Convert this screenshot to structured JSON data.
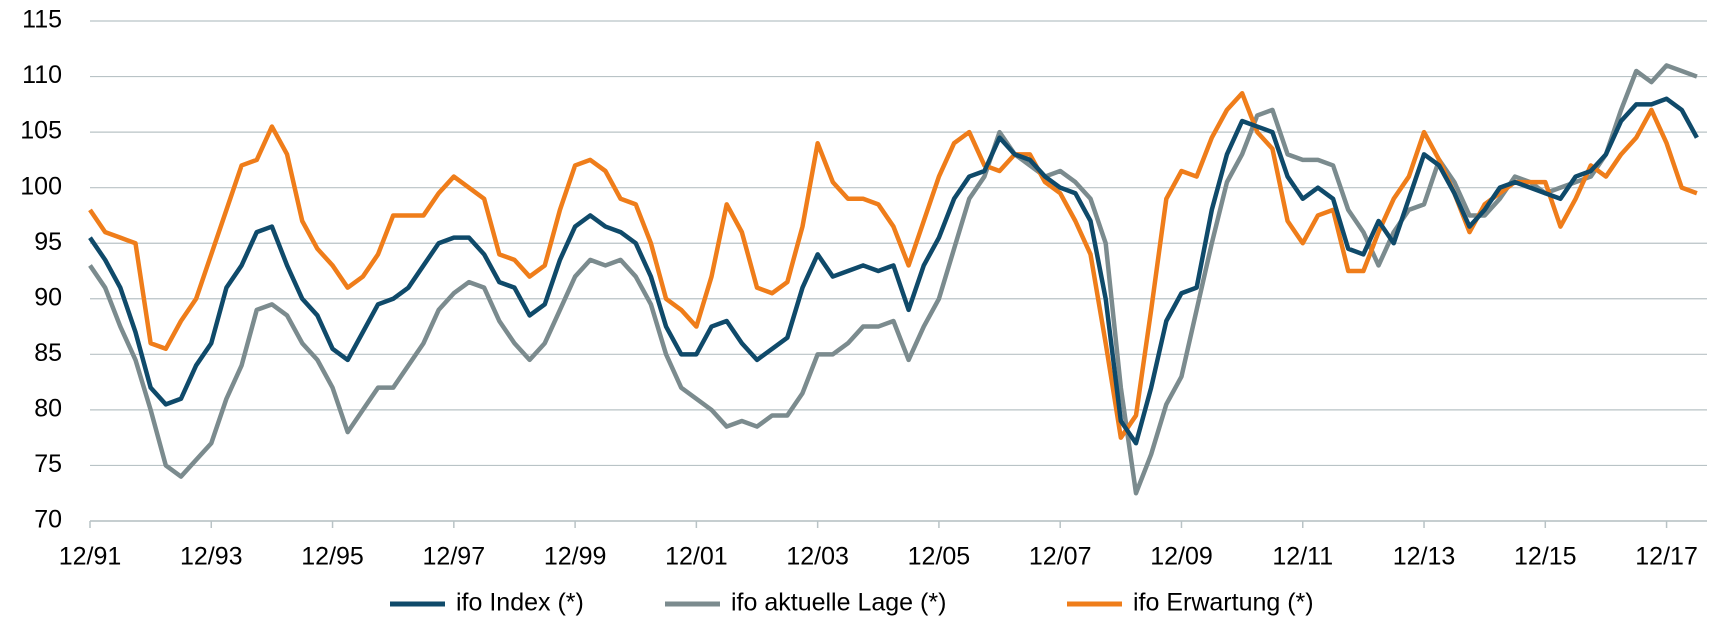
{
  "chart_data": {
    "type": "line",
    "x": [
      "12/91",
      "03/92",
      "06/92",
      "09/92",
      "12/92",
      "03/93",
      "06/93",
      "09/93",
      "12/93",
      "03/94",
      "06/94",
      "09/94",
      "12/94",
      "03/95",
      "06/95",
      "09/95",
      "12/95",
      "03/96",
      "06/96",
      "09/96",
      "12/96",
      "03/97",
      "06/97",
      "09/97",
      "12/97",
      "03/98",
      "06/98",
      "09/98",
      "12/98",
      "03/99",
      "06/99",
      "09/99",
      "12/99",
      "03/00",
      "06/00",
      "09/00",
      "12/00",
      "03/01",
      "06/01",
      "09/01",
      "12/01",
      "03/02",
      "06/02",
      "09/02",
      "12/02",
      "03/03",
      "06/03",
      "09/03",
      "12/03",
      "03/04",
      "06/04",
      "09/04",
      "12/04",
      "03/05",
      "06/05",
      "09/05",
      "12/05",
      "03/06",
      "06/06",
      "09/06",
      "12/06",
      "03/07",
      "06/07",
      "09/07",
      "12/07",
      "03/08",
      "06/08",
      "09/08",
      "12/08",
      "03/09",
      "06/09",
      "09/09",
      "12/09",
      "03/10",
      "06/10",
      "09/10",
      "12/10",
      "03/11",
      "06/11",
      "09/11",
      "12/11",
      "03/12",
      "06/12",
      "09/12",
      "12/12",
      "03/13",
      "06/13",
      "09/13",
      "12/13",
      "03/14",
      "06/14",
      "09/14",
      "12/14",
      "03/15",
      "06/15",
      "09/15",
      "12/15",
      "03/16",
      "06/16",
      "09/16",
      "12/16",
      "03/17",
      "06/17",
      "09/17",
      "12/17",
      "03/18",
      "06/18"
    ],
    "xlim": [
      "12/91",
      "08/18"
    ],
    "xticks": [
      "12/91",
      "12/93",
      "12/95",
      "12/97",
      "12/99",
      "12/01",
      "12/03",
      "12/05",
      "12/07",
      "12/09",
      "12/11",
      "12/13",
      "12/15",
      "12/17"
    ],
    "ylim": [
      70,
      115
    ],
    "yticks": [
      70,
      75,
      80,
      85,
      90,
      95,
      100,
      105,
      110,
      115
    ],
    "grid": true,
    "series": [
      {
        "name": "ifo Index (*)",
        "color": "#0f4a6a",
        "values": [
          95.5,
          93.5,
          91,
          87,
          82,
          80.5,
          81,
          84,
          86,
          91,
          93,
          96,
          96.5,
          93,
          90,
          88.5,
          85.5,
          84.5,
          87,
          89.5,
          90,
          91,
          93,
          95,
          95.5,
          95.5,
          94,
          91.5,
          91,
          88.5,
          89.5,
          93.5,
          96.5,
          97.5,
          96.5,
          96,
          95,
          92,
          87.5,
          85,
          85,
          87.5,
          88,
          86,
          84.5,
          85.5,
          86.5,
          91,
          94,
          92,
          92.5,
          93,
          92.5,
          93,
          89,
          93,
          95.5,
          99,
          101,
          101.5,
          104.5,
          103,
          102.5,
          101,
          100,
          99.5,
          97,
          90,
          79,
          77,
          82,
          88,
          90.5,
          91,
          98,
          103,
          106,
          105.5,
          105,
          101,
          99,
          100,
          99,
          94.5,
          94,
          97,
          95,
          99,
          103,
          102,
          99.5,
          96.5,
          98,
          100,
          100.5,
          100,
          99.5,
          99,
          101,
          101.5,
          103,
          106,
          107.5,
          107.5,
          108,
          107,
          104.5
        ]
      },
      {
        "name": "ifo aktuelle Lage (*)",
        "color": "#7b8b8e",
        "values": [
          93,
          91,
          87.5,
          84.5,
          80,
          75,
          74,
          75.5,
          77,
          81,
          84,
          89,
          89.5,
          88.5,
          86,
          84.5,
          82,
          78,
          80,
          82,
          82,
          84,
          86,
          89,
          90.5,
          91.5,
          91,
          88,
          86,
          84.5,
          86,
          89,
          92,
          93.5,
          93,
          93.5,
          92,
          89.5,
          85,
          82,
          81,
          80,
          78.5,
          79,
          78.5,
          79.5,
          79.5,
          81.5,
          85,
          85,
          86,
          87.5,
          87.5,
          88,
          84.5,
          87.5,
          90,
          94.5,
          99,
          101,
          105,
          103,
          102,
          101,
          101.5,
          100.5,
          99,
          95,
          82,
          72.5,
          76,
          80.5,
          83,
          89,
          95,
          100.5,
          103,
          106.5,
          107,
          103,
          102.5,
          102.5,
          102,
          98,
          96,
          93,
          96,
          98,
          98.5,
          102.5,
          100.5,
          97.5,
          97.5,
          99,
          101,
          100.5,
          99.5,
          100,
          100.5,
          101,
          103,
          107,
          110.5,
          109.5,
          111,
          110.5,
          110
        ]
      },
      {
        "name": "ifo Erwartung (*)",
        "color": "#ef7d1a",
        "values": [
          98,
          96,
          95.5,
          95,
          86,
          85.5,
          88,
          90,
          94,
          98,
          102,
          102.5,
          105.5,
          103,
          97,
          94.5,
          93,
          91,
          92,
          94,
          97.5,
          97.5,
          97.5,
          99.5,
          101,
          100,
          99,
          94,
          93.5,
          92,
          93,
          98,
          102,
          102.5,
          101.5,
          99,
          98.5,
          95,
          90,
          89,
          87.5,
          92,
          98.5,
          96,
          91,
          90.5,
          91.5,
          96.5,
          104,
          100.5,
          99,
          99,
          98.5,
          96.5,
          93,
          97,
          101,
          104,
          105,
          102,
          101.5,
          103,
          103,
          100.5,
          99.5,
          97,
          94,
          86,
          77.5,
          79.5,
          89,
          99,
          101.5,
          101,
          104.5,
          107,
          108.5,
          105,
          103.5,
          97,
          95,
          97.5,
          98,
          92.5,
          92.5,
          96,
          99,
          101,
          105,
          102.5,
          99.5,
          96,
          98.5,
          99.5,
          100.5,
          100.5,
          100.5,
          96.5,
          99,
          102,
          101,
          103,
          104.5,
          107,
          104,
          100,
          99.5
        ]
      }
    ]
  }
}
